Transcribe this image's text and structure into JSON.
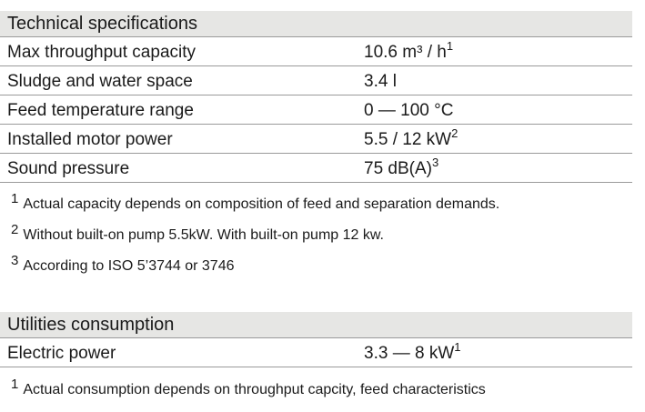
{
  "technical": {
    "title": "Technical specifications",
    "rows": [
      {
        "label": "Max throughput capacity",
        "value": "10.6 m³ / h",
        "sup": "1"
      },
      {
        "label": "Sludge and water space",
        "value": "3.4 l",
        "sup": ""
      },
      {
        "label": "Feed temperature range",
        "value": "0 — 100 °C",
        "sup": ""
      },
      {
        "label": "Installed motor power",
        "value": "5.5 / 12 kW",
        "sup": "2"
      },
      {
        "label": "Sound pressure",
        "value": "75 dB(A)",
        "sup": "3"
      }
    ],
    "footnotes": [
      {
        "mark": "1",
        "text": "Actual capacity depends on composition of feed and separation demands."
      },
      {
        "mark": "2",
        "text": "Without built-on pump 5.5kW. With built-on pump 12 kw."
      },
      {
        "mark": "3",
        "text": "According to ISO 5’3744 or 3746"
      }
    ]
  },
  "utilities": {
    "title": "Utilities consumption",
    "rows": [
      {
        "label": "Electric power",
        "value": "3.3 — 8 kW",
        "sup": "1"
      }
    ],
    "footnotes": [
      {
        "mark": "1",
        "text": "Actual consumption depends on throughput capcity, feed characteristics"
      }
    ]
  }
}
